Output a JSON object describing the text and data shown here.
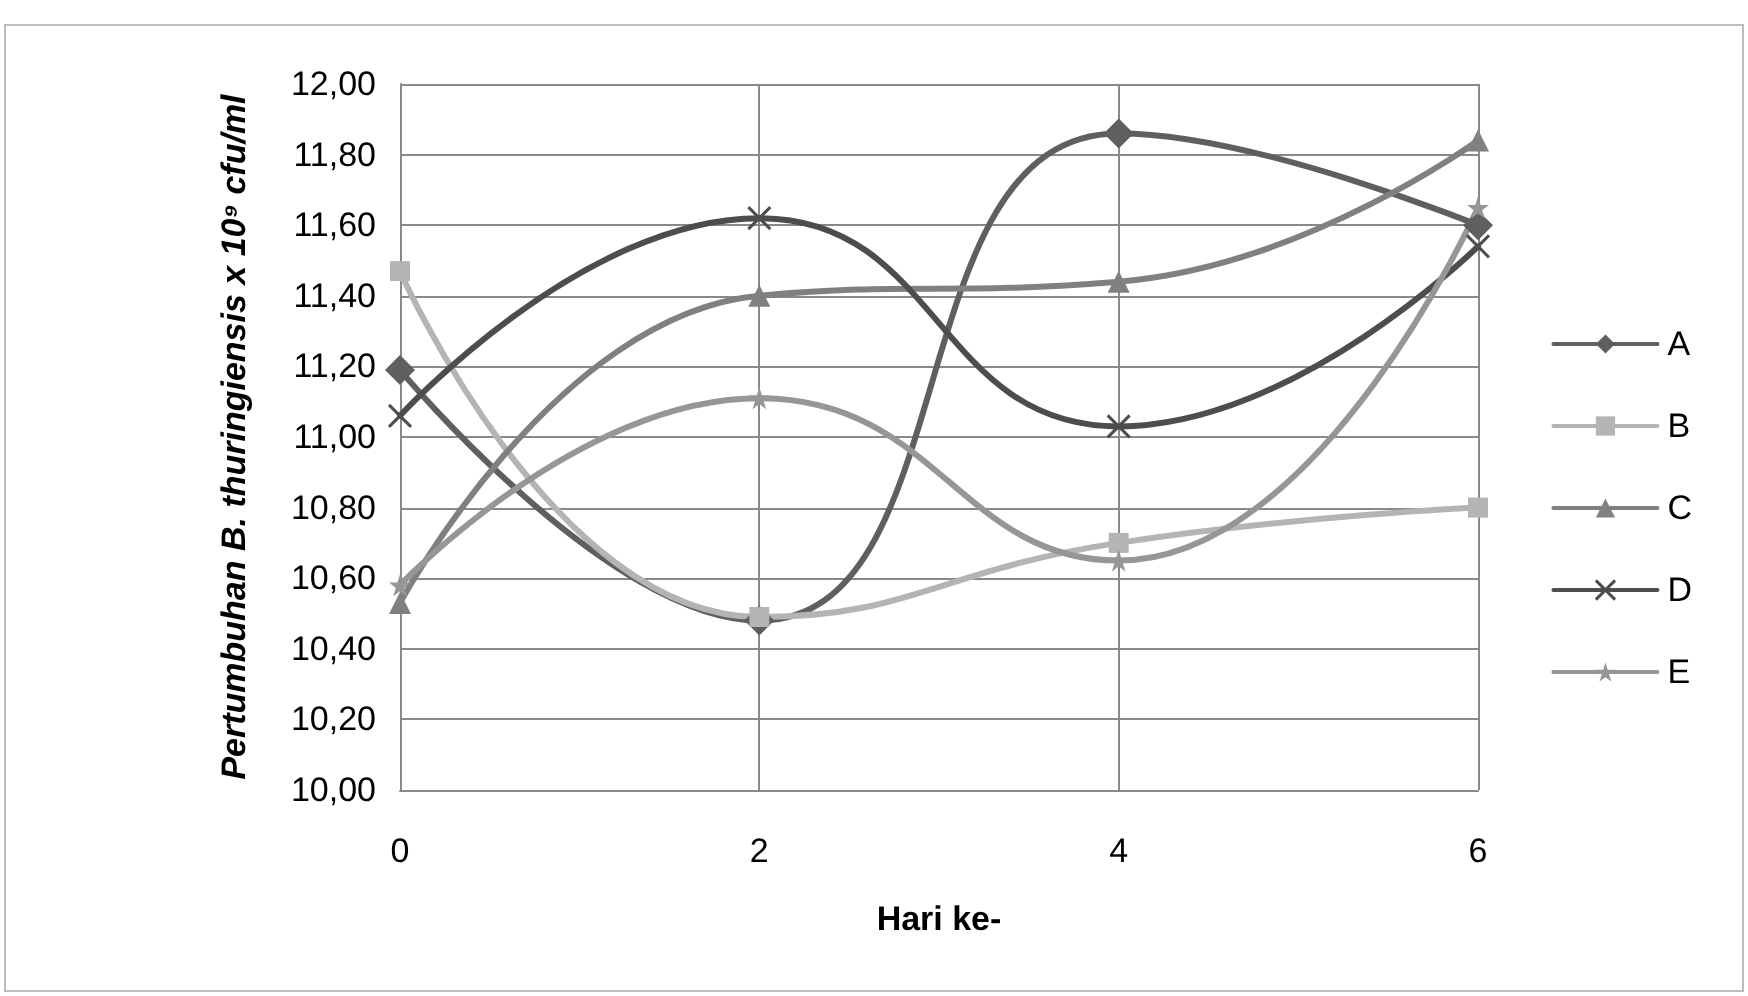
{
  "chart_data": {
    "type": "line",
    "xlabel": "Hari ke-",
    "ylabel": "Pertumbuhan B. thuringiensis x 10⁹ cfu/ml",
    "x": [
      0,
      2,
      4,
      6
    ],
    "xlim": [
      0,
      6
    ],
    "xticks": [
      0,
      2,
      4,
      6
    ],
    "ylim": [
      10,
      12
    ],
    "yticks": [
      {
        "value": 10,
        "label": "10,00"
      },
      {
        "value": 10.2,
        "label": "10,20"
      },
      {
        "value": 10.4,
        "label": "10,40"
      },
      {
        "value": 10.6,
        "label": "10,60"
      },
      {
        "value": 10.8,
        "label": "10,80"
      },
      {
        "value": 11,
        "label": "11,00"
      },
      {
        "value": 11.2,
        "label": "11,20"
      },
      {
        "value": 11.4,
        "label": "11,40"
      },
      {
        "value": 11.6,
        "label": "11,60"
      },
      {
        "value": 11.8,
        "label": "11,80"
      },
      {
        "value": 12,
        "label": "12,00"
      }
    ],
    "grid": true,
    "legend": "right",
    "line_style": "solid",
    "series": [
      {
        "name": "A",
        "color": "#5f5f5f",
        "marker": "diamond",
        "values": [
          11.19,
          10.48,
          11.86,
          11.6
        ]
      },
      {
        "name": "B",
        "color": "#b4b4b4",
        "marker": "square",
        "values": [
          11.47,
          10.49,
          10.7,
          10.8
        ]
      },
      {
        "name": "C",
        "color": "#808080",
        "marker": "triangle",
        "values": [
          10.53,
          11.4,
          11.44,
          11.84
        ]
      },
      {
        "name": "D",
        "color": "#4d4d4d",
        "marker": "cross",
        "values": [
          11.06,
          11.62,
          11.03,
          11.54
        ]
      },
      {
        "name": "E",
        "color": "#969696",
        "marker": "star",
        "values": [
          10.58,
          11.11,
          10.65,
          11.65
        ]
      }
    ]
  }
}
